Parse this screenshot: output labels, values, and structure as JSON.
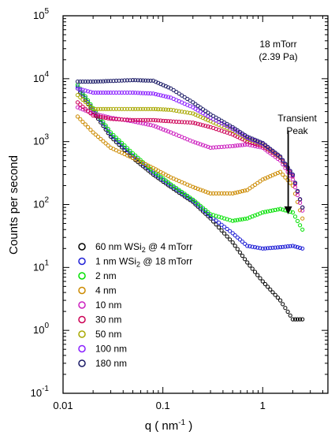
{
  "chart_data": {
    "type": "scatter",
    "x_scale": "log",
    "y_scale": "log",
    "xlim": [
      0.01,
      4.5
    ],
    "ylim": [
      0.1,
      100000
    ],
    "xlabel_main": "q ( nm",
    "xlabel_sup": "-1",
    "xlabel_end": " )",
    "ylabel": "Counts per second",
    "x_ticks": [
      {
        "value": 0.01,
        "label": "0.01"
      },
      {
        "value": 0.1,
        "label": "0.1"
      },
      {
        "value": 1,
        "label": "1"
      }
    ],
    "y_ticks": [
      {
        "value": 0.1,
        "base": "10",
        "exp": "-1"
      },
      {
        "value": 1,
        "base": "10",
        "exp": "0"
      },
      {
        "value": 10,
        "base": "10",
        "exp": "1"
      },
      {
        "value": 100,
        "base": "10",
        "exp": "2"
      },
      {
        "value": 1000,
        "base": "10",
        "exp": "3"
      },
      {
        "value": 10000,
        "base": "10",
        "exp": "4"
      },
      {
        "value": 100000,
        "base": "10",
        "exp": "5"
      }
    ],
    "annotations": {
      "pressure_line1": "18 mTorr",
      "pressure_line2": "(2.39 Pa)",
      "peak_line1": "Transient",
      "peak_line2": "Peak",
      "arrow_from": [
        1.8,
        1500
      ],
      "arrow_to": [
        1.8,
        70
      ]
    },
    "legend_position": "bottom-left",
    "series": [
      {
        "name_pre": "60 nm WSi",
        "sub": "2",
        "name_post": " @ 4 mTorr",
        "color": "#000000",
        "points": [
          [
            0.014,
            7000
          ],
          [
            0.02,
            3000
          ],
          [
            0.03,
            1200
          ],
          [
            0.05,
            550
          ],
          [
            0.08,
            300
          ],
          [
            0.12,
            190
          ],
          [
            0.2,
            110
          ],
          [
            0.3,
            60
          ],
          [
            0.5,
            25
          ],
          [
            0.7,
            12
          ],
          [
            1.0,
            6
          ],
          [
            1.5,
            3
          ],
          [
            2.0,
            1.5
          ],
          [
            2.5,
            1.5
          ]
        ]
      },
      {
        "name_pre": "1 nm WSi",
        "sub": "2",
        "name_post": " @ 18 mTorr",
        "color": "#1f1fd6",
        "points": [
          [
            0.014,
            7500
          ],
          [
            0.02,
            3200
          ],
          [
            0.03,
            1300
          ],
          [
            0.05,
            600
          ],
          [
            0.08,
            320
          ],
          [
            0.12,
            200
          ],
          [
            0.2,
            115
          ],
          [
            0.3,
            65
          ],
          [
            0.5,
            35
          ],
          [
            0.7,
            22
          ],
          [
            1.0,
            20
          ],
          [
            1.5,
            21
          ],
          [
            2.0,
            22
          ],
          [
            2.5,
            20
          ]
        ]
      },
      {
        "name_pre": "2 nm",
        "sub": "",
        "name_post": "",
        "color": "#00e000",
        "points": [
          [
            0.014,
            8000
          ],
          [
            0.02,
            3400
          ],
          [
            0.03,
            1400
          ],
          [
            0.05,
            650
          ],
          [
            0.08,
            340
          ],
          [
            0.12,
            210
          ],
          [
            0.2,
            120
          ],
          [
            0.3,
            70
          ],
          [
            0.5,
            55
          ],
          [
            0.7,
            60
          ],
          [
            1.0,
            75
          ],
          [
            1.5,
            85
          ],
          [
            2.0,
            75
          ],
          [
            2.5,
            40
          ]
        ]
      },
      {
        "name_pre": "4 nm",
        "sub": "",
        "name_post": "",
        "color": "#cc8a00",
        "points": [
          [
            0.014,
            2500
          ],
          [
            0.02,
            1400
          ],
          [
            0.03,
            800
          ],
          [
            0.05,
            550
          ],
          [
            0.08,
            380
          ],
          [
            0.12,
            270
          ],
          [
            0.2,
            190
          ],
          [
            0.3,
            150
          ],
          [
            0.5,
            150
          ],
          [
            0.7,
            170
          ],
          [
            1.0,
            250
          ],
          [
            1.5,
            330
          ],
          [
            2.0,
            200
          ],
          [
            2.5,
            60
          ]
        ]
      },
      {
        "name_pre": "10 nm",
        "sub": "",
        "name_post": "",
        "color": "#cc1fbf",
        "points": [
          [
            0.014,
            3500
          ],
          [
            0.02,
            2800
          ],
          [
            0.03,
            2400
          ],
          [
            0.05,
            2100
          ],
          [
            0.08,
            1800
          ],
          [
            0.12,
            1400
          ],
          [
            0.2,
            1000
          ],
          [
            0.3,
            800
          ],
          [
            0.5,
            850
          ],
          [
            0.7,
            900
          ],
          [
            1.0,
            800
          ],
          [
            1.5,
            500
          ],
          [
            2.0,
            250
          ],
          [
            2.5,
            80
          ]
        ]
      },
      {
        "name_pre": "30 nm",
        "sub": "",
        "name_post": "",
        "color": "#cc0055",
        "points": [
          [
            0.014,
            4200
          ],
          [
            0.02,
            2600
          ],
          [
            0.03,
            2300
          ],
          [
            0.05,
            2200
          ],
          [
            0.08,
            2200
          ],
          [
            0.12,
            2100
          ],
          [
            0.2,
            2000
          ],
          [
            0.3,
            1700
          ],
          [
            0.5,
            1300
          ],
          [
            0.7,
            1000
          ],
          [
            1.0,
            850
          ],
          [
            1.5,
            550
          ],
          [
            2.0,
            280
          ],
          [
            2.5,
            90
          ]
        ]
      },
      {
        "name_pre": "50 nm",
        "sub": "",
        "name_post": "",
        "color": "#a8a800",
        "points": [
          [
            0.014,
            5500
          ],
          [
            0.02,
            3300
          ],
          [
            0.03,
            3300
          ],
          [
            0.05,
            3300
          ],
          [
            0.08,
            3300
          ],
          [
            0.12,
            3200
          ],
          [
            0.2,
            2800
          ],
          [
            0.3,
            2100
          ],
          [
            0.5,
            1500
          ],
          [
            0.7,
            1100
          ],
          [
            1.0,
            900
          ],
          [
            1.5,
            560
          ],
          [
            2.0,
            290
          ],
          [
            2.5,
            90
          ]
        ]
      },
      {
        "name_pre": "100 nm",
        "sub": "",
        "name_post": "",
        "color": "#8a1fff",
        "points": [
          [
            0.014,
            7000
          ],
          [
            0.02,
            6000
          ],
          [
            0.03,
            6000
          ],
          [
            0.05,
            6000
          ],
          [
            0.08,
            5800
          ],
          [
            0.12,
            5000
          ],
          [
            0.2,
            3500
          ],
          [
            0.3,
            2400
          ],
          [
            0.5,
            1600
          ],
          [
            0.7,
            1150
          ],
          [
            1.0,
            920
          ],
          [
            1.5,
            570
          ],
          [
            2.0,
            290
          ],
          [
            2.5,
            90
          ]
        ]
      },
      {
        "name_pre": "180 nm",
        "sub": "",
        "name_post": "",
        "color": "#1a1a66",
        "points": [
          [
            0.014,
            9000
          ],
          [
            0.02,
            9000
          ],
          [
            0.03,
            9200
          ],
          [
            0.05,
            9500
          ],
          [
            0.08,
            9300
          ],
          [
            0.12,
            7000
          ],
          [
            0.2,
            4200
          ],
          [
            0.3,
            2700
          ],
          [
            0.5,
            1700
          ],
          [
            0.7,
            1200
          ],
          [
            1.0,
            950
          ],
          [
            1.5,
            580
          ],
          [
            2.0,
            300
          ],
          [
            2.5,
            90
          ]
        ]
      }
    ]
  }
}
